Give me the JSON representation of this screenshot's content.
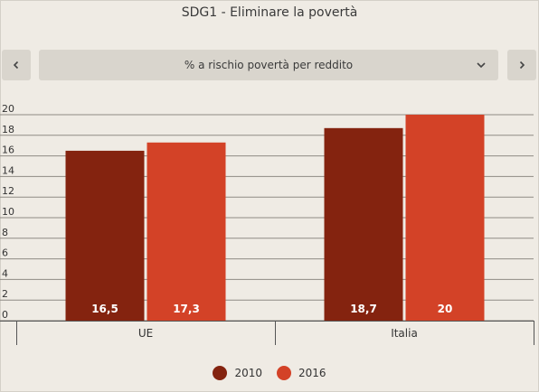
{
  "title": "SDG1 - Eliminare la povertà",
  "selector": {
    "label": "% a rischio povertà per reddito"
  },
  "nav": {
    "prev_icon": "chevron-left-icon",
    "next_icon": "chevron-right-icon",
    "dropdown_icon": "chevron-down-icon"
  },
  "colors": {
    "2010": "#84230f",
    "2016": "#d34227",
    "grid": "#8f8b85",
    "background": "#efebe4"
  },
  "chart_data": {
    "type": "bar",
    "title": "SDG1 - Eliminare la povertà",
    "categories": [
      "UE",
      "Italia"
    ],
    "series": [
      {
        "name": "2010",
        "values": [
          16.5,
          18.7
        ],
        "labels": [
          "16,5",
          "18,7"
        ]
      },
      {
        "name": "2016",
        "values": [
          17.3,
          20
        ],
        "labels": [
          "17,3",
          "20"
        ]
      }
    ],
    "yticks": [
      0,
      2,
      4,
      6,
      8,
      10,
      12,
      14,
      16,
      18,
      20
    ],
    "ylim": [
      0,
      20
    ],
    "xlabel": "",
    "ylabel": "",
    "grid": true,
    "legend": "bottom"
  },
  "legend": [
    {
      "label": "2010",
      "color": "#84230f"
    },
    {
      "label": "2016",
      "color": "#d34227"
    }
  ]
}
